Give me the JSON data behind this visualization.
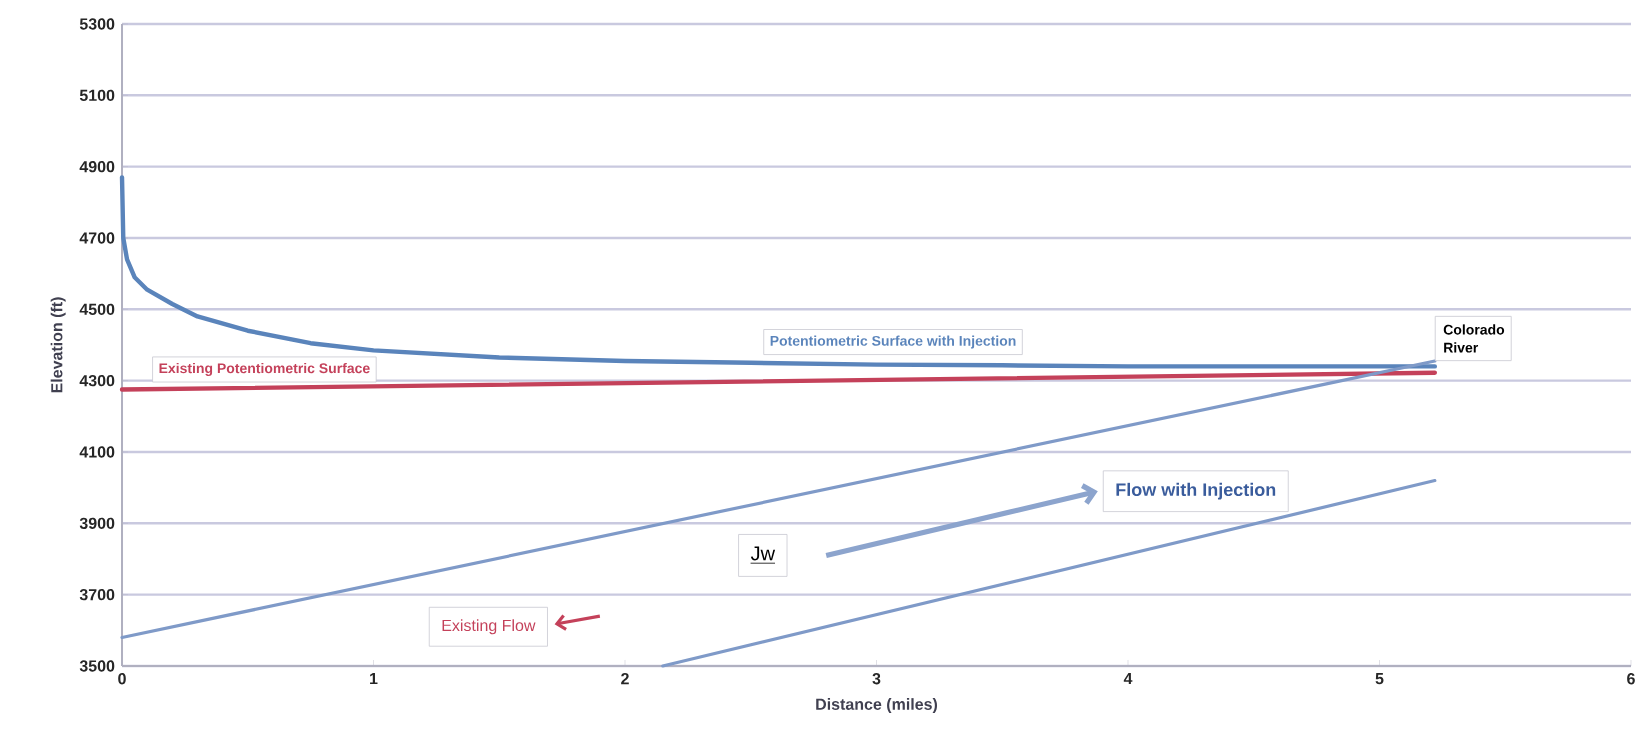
{
  "chart_data": {
    "type": "line",
    "xlabel": "Distance (miles)",
    "ylabel": "Elevation (ft)",
    "xlim": [
      0,
      6
    ],
    "ylim": [
      3500,
      5300
    ],
    "xticks": [
      0,
      1,
      2,
      3,
      4,
      5,
      6
    ],
    "yticks": [
      3500,
      3700,
      3900,
      4100,
      4300,
      4500,
      4700,
      4900,
      5100,
      5300
    ],
    "grid": "y",
    "series": [
      {
        "name": "Potentiometric Surface with Injection",
        "color": "#5a84bb",
        "x": [
          0,
          0.005,
          0.02,
          0.05,
          0.1,
          0.2,
          0.3,
          0.5,
          0.75,
          1,
          1.5,
          2,
          2.5,
          3,
          3.5,
          4,
          4.5,
          5,
          5.22
        ],
        "values": [
          4870,
          4700,
          4640,
          4590,
          4555,
          4515,
          4480,
          4440,
          4405,
          4385,
          4365,
          4355,
          4350,
          4345,
          4343,
          4340,
          4340,
          4340,
          4340
        ]
      },
      {
        "name": "Existing Potentiometric Surface",
        "color": "#c4415a",
        "x": [
          0,
          5.22
        ],
        "values": [
          4275,
          4322
        ]
      },
      {
        "color": "#7f9ac8",
        "x": [
          0,
          5.22
        ],
        "values": [
          3580,
          4355
        ]
      },
      {
        "color": "#7f9ac8",
        "x": [
          2.15,
          5.22
        ],
        "values": [
          3500,
          4020
        ]
      }
    ],
    "annotations": [
      {
        "text": "Colorado River",
        "x": 5.22,
        "y": 4355
      },
      "Flow with Injection",
      "Jw",
      "Existing Flow"
    ]
  }
}
